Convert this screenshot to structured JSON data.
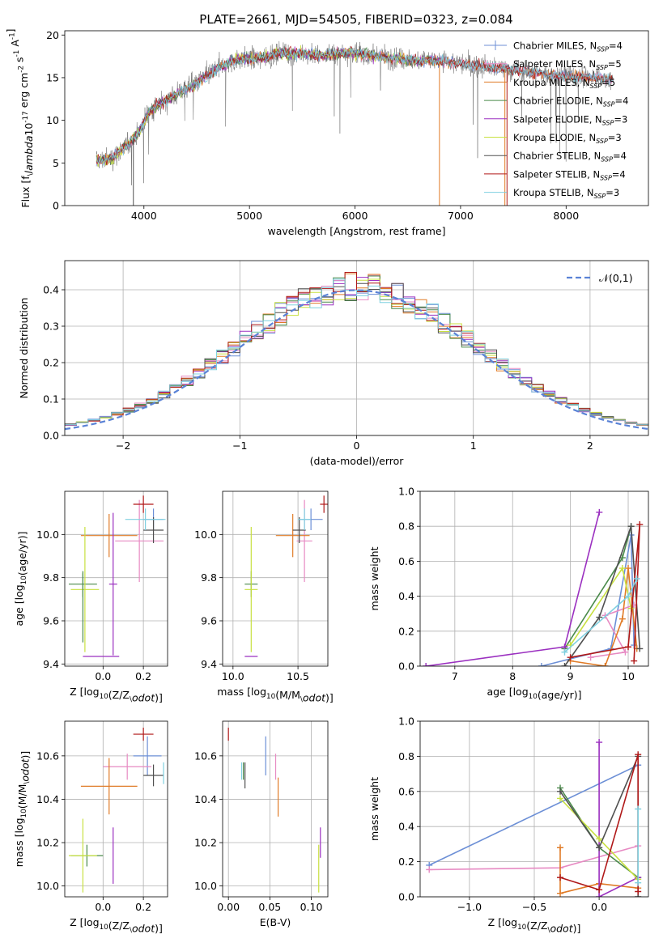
{
  "figure_title": "PLATE=2661, MJD=54505, FIBERID=0323, z=0.084",
  "colors": {
    "Chabrier MILES": "#6c8fd6",
    "Salpeter MILES": "#e78ac3",
    "Kroupa MILES": "#e07b27",
    "Chabrier ELODIE": "#4a8a4a",
    "Salpeter ELODIE": "#9b30c0",
    "Kroupa ELODIE": "#c8e040",
    "Chabrier STELIB": "#505050",
    "Salpeter STELIB": "#b01818",
    "Kroupa STELIB": "#7fd0e0",
    "normal": "#5a82d6",
    "data": "#707070"
  },
  "chart_data": [
    {
      "id": "spectrum",
      "type": "line",
      "xlabel": "wavelength [Angstrom, rest frame]",
      "ylabel": "Flux [f$_\\lambda$10$^{-17}$ erg cm$^{-2}$ s$^{-1}$ A$^{-1}$]",
      "xlim": [
        3250,
        8780
      ],
      "ylim": [
        0,
        20.5
      ],
      "xticks": [
        4000,
        5000,
        6000,
        7000,
        8000
      ],
      "yticks": [
        0,
        5,
        10,
        15,
        20
      ],
      "grid": false,
      "legend_position": "upper right",
      "legend": [
        {
          "main": "Chabrier MILES, N",
          "sub": "SSP",
          "tail": "=4",
          "series": "Chabrier MILES"
        },
        {
          "main": "Salpeter MILES, N",
          "sub": "SSP",
          "tail": "=5",
          "series": "Salpeter MILES"
        },
        {
          "main": "Kroupa MILES, N",
          "sub": "SSP",
          "tail": "=5",
          "series": "Kroupa MILES"
        },
        {
          "main": "Chabrier ELODIE, N",
          "sub": "SSP",
          "tail": "=4",
          "series": "Chabrier ELODIE"
        },
        {
          "main": "Salpeter ELODIE, N",
          "sub": "SSP",
          "tail": "=3",
          "series": "Salpeter ELODIE"
        },
        {
          "main": "Kroupa ELODIE, N",
          "sub": "SSP",
          "tail": "=3",
          "series": "Kroupa ELODIE"
        },
        {
          "main": "Chabrier STELIB, N",
          "sub": "SSP",
          "tail": "=4",
          "series": "Chabrier STELIB"
        },
        {
          "main": "Salpeter STELIB, N",
          "sub": "SSP",
          "tail": "=4",
          "series": "Salpeter STELIB"
        },
        {
          "main": "Kroupa STELIB, N",
          "sub": "SSP",
          "tail": "=3",
          "series": "Kroupa STELIB"
        }
      ],
      "continuum": [
        [
          3550,
          5.2
        ],
        [
          3700,
          5.6
        ],
        [
          3850,
          7.2
        ],
        [
          3950,
          8.6
        ],
        [
          4050,
          11.0
        ],
        [
          4200,
          12.3
        ],
        [
          4350,
          13.3
        ],
        [
          4500,
          14.4
        ],
        [
          4700,
          16.1
        ],
        [
          4900,
          17.2
        ],
        [
          5100,
          17.3
        ],
        [
          5300,
          17.9
        ],
        [
          5500,
          17.8
        ],
        [
          5700,
          17.6
        ],
        [
          5900,
          18.0
        ],
        [
          6100,
          17.7
        ],
        [
          6300,
          17.4
        ],
        [
          6500,
          17.1
        ],
        [
          6700,
          17.0
        ],
        [
          6900,
          16.8
        ],
        [
          7100,
          16.5
        ],
        [
          7300,
          16.2
        ],
        [
          7500,
          15.9
        ],
        [
          7700,
          15.6
        ],
        [
          7900,
          15.3
        ],
        [
          8100,
          15.1
        ],
        [
          8300,
          15.0
        ],
        [
          8450,
          14.8
        ]
      ],
      "data_range": [
        3550,
        8450
      ],
      "dropouts": [
        {
          "x": 3900,
          "series": "Chabrier STELIB"
        },
        {
          "x": 6800,
          "series": "Kroupa MILES"
        },
        {
          "x": 7420,
          "series": "Kroupa MILES"
        },
        {
          "x": 7440,
          "series": "Salpeter STELIB"
        }
      ]
    },
    {
      "id": "residuals",
      "type": "histogram",
      "xlabel": "(data-model)/error",
      "ylabel": "Normed distribution",
      "xlim": [
        -2.5,
        2.5
      ],
      "ylim": [
        0,
        0.48
      ],
      "xticks": [
        -2,
        -1,
        0,
        1,
        2
      ],
      "yticks": [
        0.0,
        0.1,
        0.2,
        0.3,
        0.4
      ],
      "grid": true,
      "legend_label": "$\\mathcal{N}(0,1)$",
      "bin_width": 0.1
    },
    {
      "id": "age-vs-Z",
      "type": "errorbar",
      "xlabel": "Z [log$_{10}$(Z/Z$_\\odot$)]",
      "ylabel": "age  [log$_{10}$(age/yr)]",
      "xlim": [
        -0.19,
        0.32
      ],
      "ylim": [
        9.39,
        10.2
      ],
      "xticks": [
        0.0,
        0.2
      ],
      "yticks": [
        9.4,
        9.6,
        9.8,
        10.0
      ],
      "grid": true,
      "points": [
        {
          "series": "Chabrier MILES",
          "x": 0.25,
          "y": 10.07,
          "xerr": 0.05,
          "yerr": 0.05
        },
        {
          "series": "Salpeter MILES",
          "x": 0.18,
          "y": 9.97,
          "xerr": 0.12,
          "yerr": 0.19
        },
        {
          "series": "Kroupa MILES",
          "x": 0.03,
          "y": 9.995,
          "xerr": 0.14,
          "yerr": 0.1
        },
        {
          "series": "Chabrier ELODIE",
          "x": -0.1,
          "y": 9.77,
          "xerr": 0.07,
          "yerr": 0.06
        },
        {
          "series": "Salpeter ELODIE",
          "x": 0.05,
          "y": 9.77,
          "xerr": 0.02,
          "yerr": 0.33
        },
        {
          "series": "Kroupa ELODIE",
          "x": -0.09,
          "y": 9.745,
          "xerr": 0.07,
          "yerr": 0.29
        },
        {
          "series": "Chabrier STELIB",
          "x": 0.25,
          "y": 10.02,
          "xerr": 0.05,
          "yerr": 0.06
        },
        {
          "series": "Salpeter STELIB",
          "x": 0.2,
          "y": 10.14,
          "xerr": 0.05,
          "yerr": 0.04
        },
        {
          "series": "Kroupa STELIB",
          "x": 0.21,
          "y": 10.07,
          "xerr": 0.1,
          "yerr": 0.05
        },
        {
          "series": "Chabrier ELODIE",
          "x": -0.1,
          "y": 9.66,
          "xerr": 0.0,
          "yerr": 0.16
        },
        {
          "series": "Salpeter ELODIE",
          "x": -0.01,
          "y": 9.435,
          "xerr": 0.09,
          "yerr": 0.0
        }
      ]
    },
    {
      "id": "age-vs-mass",
      "type": "errorbar",
      "xlabel": "mass [log$_{10}$(M/M$_\\odot$)]",
      "ylabel": "",
      "xlim": [
        9.92,
        10.73
      ],
      "ylim": [
        9.39,
        10.2
      ],
      "xticks": [
        10.0,
        10.5
      ],
      "yticks": [
        9.4,
        9.6,
        9.8,
        10.0
      ],
      "grid": true,
      "points": [
        {
          "series": "Chabrier MILES",
          "x": 10.6,
          "y": 10.07,
          "xerr": 0.09,
          "yerr": 0.05
        },
        {
          "series": "Salpeter MILES",
          "x": 10.55,
          "y": 9.97,
          "xerr": 0.06,
          "yerr": 0.19
        },
        {
          "series": "Kroupa MILES",
          "x": 10.46,
          "y": 9.995,
          "xerr": 0.13,
          "yerr": 0.1
        },
        {
          "series": "Chabrier ELODIE",
          "x": 10.14,
          "y": 9.77,
          "xerr": 0.05,
          "yerr": 0.06
        },
        {
          "series": "Salpeter ELODIE",
          "x": 10.14,
          "y": 9.435,
          "xerr": 0.05,
          "yerr": 0.0
        },
        {
          "series": "Kroupa ELODIE",
          "x": 10.14,
          "y": 9.745,
          "xerr": 0.05,
          "yerr": 0.29
        },
        {
          "series": "Chabrier STELIB",
          "x": 10.51,
          "y": 10.02,
          "xerr": 0.05,
          "yerr": 0.06
        },
        {
          "series": "Salpeter STELIB",
          "x": 10.7,
          "y": 10.14,
          "xerr": 0.03,
          "yerr": 0.04
        },
        {
          "series": "Kroupa STELIB",
          "x": 10.55,
          "y": 10.07,
          "xerr": 0.05,
          "yerr": 0.05
        }
      ]
    },
    {
      "id": "mass-weight-vs-age",
      "type": "line",
      "xlabel": "age  [log$_{10}$(age/yr)]",
      "ylabel": "mass weight",
      "xlim": [
        6.4,
        10.35
      ],
      "ylim": [
        0,
        1.0
      ],
      "xticks": [
        7,
        8,
        9,
        10
      ],
      "yticks": [
        0.0,
        0.2,
        0.4,
        0.6,
        0.8,
        1.0
      ],
      "grid": true,
      "series": [
        {
          "name": "Chabrier MILES",
          "points": [
            [
              8.5,
              0.0
            ],
            [
              9.7,
              0.1
            ],
            [
              10.05,
              0.75
            ],
            [
              10.1,
              0.12
            ]
          ]
        },
        {
          "name": "Salpeter MILES",
          "points": [
            [
              9.35,
              0.05
            ],
            [
              9.95,
              0.08
            ],
            [
              9.6,
              0.29
            ],
            [
              10.1,
              0.35
            ]
          ]
        },
        {
          "name": "Kroupa MILES",
          "points": [
            [
              9.0,
              0.03
            ],
            [
              9.6,
              0.0
            ],
            [
              9.9,
              0.27
            ],
            [
              10.0,
              0.56
            ],
            [
              10.15,
              0.1
            ]
          ]
        },
        {
          "name": "Chabrier ELODIE",
          "points": [
            [
              8.9,
              0.1
            ],
            [
              9.9,
              0.62
            ],
            [
              10.05,
              0.8
            ]
          ]
        },
        {
          "name": "Salpeter ELODIE",
          "points": [
            [
              6.5,
              0.0
            ],
            [
              8.9,
              0.11
            ],
            [
              9.5,
              0.88
            ]
          ]
        },
        {
          "name": "Kroupa ELODIE",
          "points": [
            [
              9.0,
              0.12
            ],
            [
              9.9,
              0.56
            ],
            [
              10.05,
              0.33
            ]
          ]
        },
        {
          "name": "Chabrier STELIB",
          "points": [
            [
              8.9,
              0.0
            ],
            [
              9.5,
              0.28
            ],
            [
              10.05,
              0.8
            ],
            [
              10.2,
              0.1
            ]
          ]
        },
        {
          "name": "Salpeter STELIB",
          "points": [
            [
              9.0,
              0.05
            ],
            [
              10.0,
              0.11
            ],
            [
              10.2,
              0.81
            ],
            [
              10.1,
              0.03
            ]
          ]
        },
        {
          "name": "Kroupa STELIB",
          "points": [
            [
              8.9,
              0.08
            ],
            [
              10.0,
              0.4
            ],
            [
              10.15,
              0.5
            ]
          ]
        }
      ]
    },
    {
      "id": "mass-vs-Z",
      "type": "errorbar",
      "xlabel": "Z [log$_{10}$(Z/Z$_\\odot$)]",
      "ylabel": "mass [log$_{10}$(M/M$_\\odot$)]",
      "xlim": [
        -0.19,
        0.32
      ],
      "ylim": [
        9.95,
        10.76
      ],
      "xticks": [
        0.0,
        0.2
      ],
      "yticks": [
        10.0,
        10.2,
        10.4,
        10.6
      ],
      "grid": true,
      "points": [
        {
          "series": "Chabrier MILES",
          "x": 0.22,
          "y": 10.6,
          "xerr": 0.07,
          "yerr": 0.09
        },
        {
          "series": "Salpeter MILES",
          "x": 0.12,
          "y": 10.55,
          "xerr": 0.12,
          "yerr": 0.06
        },
        {
          "series": "Kroupa MILES",
          "x": 0.03,
          "y": 10.46,
          "xerr": 0.14,
          "yerr": 0.13
        },
        {
          "series": "Chabrier ELODIE",
          "x": -0.08,
          "y": 10.14,
          "xerr": 0.08,
          "yerr": 0.05
        },
        {
          "series": "Salpeter ELODIE",
          "x": 0.05,
          "y": 10.14,
          "xerr": 0.0,
          "yerr": 0.13
        },
        {
          "series": "Kroupa ELODIE",
          "x": -0.1,
          "y": 10.14,
          "xerr": 0.07,
          "yerr": 0.17
        },
        {
          "series": "Chabrier STELIB",
          "x": 0.25,
          "y": 10.51,
          "xerr": 0.05,
          "yerr": 0.05
        },
        {
          "series": "Salpeter STELIB",
          "x": 0.2,
          "y": 10.7,
          "xerr": 0.05,
          "yerr": 0.03
        },
        {
          "series": "Kroupa STELIB",
          "x": 0.3,
          "y": 10.52,
          "xerr": 0.0,
          "yerr": 0.05
        }
      ]
    },
    {
      "id": "mass-vs-EBV",
      "type": "errorbar",
      "xlabel": "E(B-V)",
      "ylabel": "",
      "xlim": [
        -0.007,
        0.12
      ],
      "ylim": [
        9.95,
        10.76
      ],
      "xticks": [
        0.0,
        0.05,
        0.1
      ],
      "xticklabels": [
        "0.00",
        "0.05",
        "0.10"
      ],
      "yticks": [
        10.0,
        10.2,
        10.4,
        10.6
      ],
      "grid": true,
      "points": [
        {
          "series": "Chabrier MILES",
          "x": 0.045,
          "y": 10.6,
          "xerr": 0.0,
          "yerr": 0.09
        },
        {
          "series": "Salpeter MILES",
          "x": 0.057,
          "y": 10.55,
          "xerr": 0.0,
          "yerr": 0.06
        },
        {
          "series": "Kroupa MILES",
          "x": 0.06,
          "y": 10.41,
          "xerr": 0.0,
          "yerr": 0.09
        },
        {
          "series": "Chabrier ELODIE",
          "x": 0.018,
          "y": 10.53,
          "xerr": 0.0,
          "yerr": 0.04
        },
        {
          "series": "Salpeter ELODIE",
          "x": 0.111,
          "y": 10.2,
          "xerr": 0.0,
          "yerr": 0.07
        },
        {
          "series": "Kroupa ELODIE",
          "x": 0.109,
          "y": 10.08,
          "xerr": 0.0,
          "yerr": 0.11
        },
        {
          "series": "Chabrier STELIB",
          "x": 0.02,
          "y": 10.51,
          "xerr": 0.0,
          "yerr": 0.06
        },
        {
          "series": "Salpeter STELIB",
          "x": 0.0,
          "y": 10.7,
          "xerr": 0.0,
          "yerr": 0.03
        },
        {
          "series": "Kroupa STELIB",
          "x": 0.016,
          "y": 10.53,
          "xerr": 0.0,
          "yerr": 0.04
        }
      ]
    },
    {
      "id": "mass-weight-vs-Z",
      "type": "line",
      "xlabel": "Z [log$_{10}$(Z/Z$_\\odot$)]",
      "ylabel": "mass weight",
      "xlim": [
        -1.38,
        0.38
      ],
      "ylim": [
        0,
        1.0
      ],
      "xticks": [
        -1.0,
        -0.5,
        0.0
      ],
      "yticks": [
        0.0,
        0.2,
        0.4,
        0.6,
        0.8,
        1.0
      ],
      "grid": true,
      "series": [
        {
          "name": "Chabrier MILES",
          "points": [
            [
              -1.31,
              0.18
            ],
            [
              0.3,
              0.75
            ]
          ]
        },
        {
          "name": "Salpeter MILES",
          "points": [
            [
              -1.31,
              0.155
            ],
            [
              -0.3,
              0.165
            ],
            [
              0.3,
              0.29
            ]
          ]
        },
        {
          "name": "Kroupa MILES",
          "points": [
            [
              -0.3,
              0.28
            ],
            [
              -0.3,
              0.02
            ],
            [
              0.0,
              0.075
            ],
            [
              0.3,
              0.05
            ]
          ]
        },
        {
          "name": "Chabrier ELODIE",
          "points": [
            [
              -0.3,
              0.62
            ],
            [
              0.0,
              0.28
            ],
            [
              0.3,
              0.11
            ]
          ]
        },
        {
          "name": "Salpeter ELODIE",
          "points": [
            [
              0.0,
              0.88
            ],
            [
              0.0,
              0.0
            ],
            [
              0.3,
              0.11
            ]
          ]
        },
        {
          "name": "Kroupa ELODIE",
          "points": [
            [
              -0.3,
              0.56
            ],
            [
              0.0,
              0.33
            ],
            [
              0.3,
              0.1
            ]
          ]
        },
        {
          "name": "Chabrier STELIB",
          "points": [
            [
              -0.3,
              0.6
            ],
            [
              0.0,
              0.28
            ],
            [
              0.3,
              0.8
            ],
            [
              0.3,
              0.0
            ]
          ]
        },
        {
          "name": "Salpeter STELIB",
          "points": [
            [
              -0.3,
              0.11
            ],
            [
              0.0,
              0.04
            ],
            [
              0.3,
              0.81
            ],
            [
              0.3,
              0.03
            ]
          ]
        },
        {
          "name": "Kroupa STELIB",
          "points": [
            [
              0.3,
              0.5
            ],
            [
              0.3,
              0.08
            ]
          ]
        }
      ]
    }
  ]
}
